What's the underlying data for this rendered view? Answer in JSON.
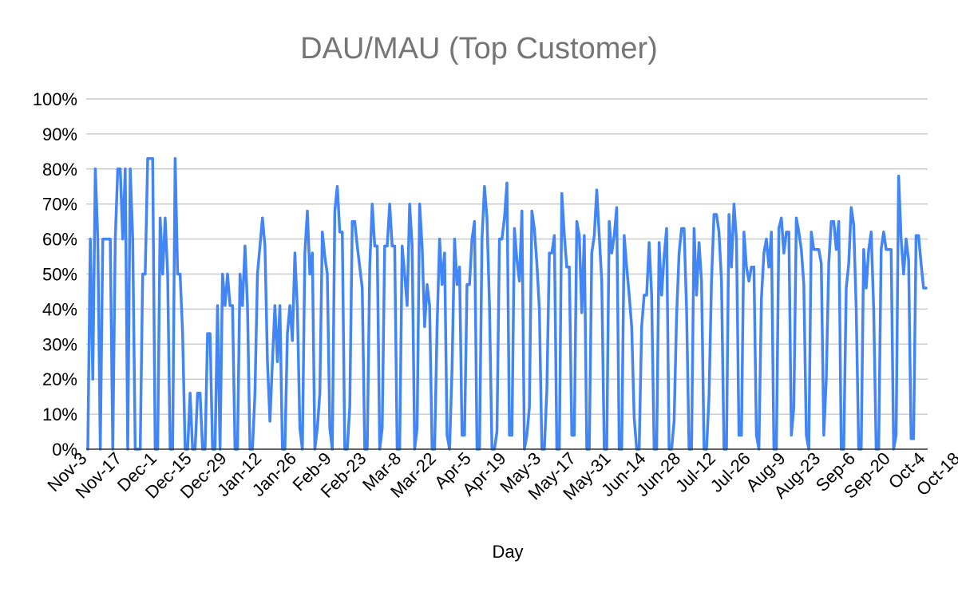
{
  "colors": {
    "series": "#4285f4",
    "grid": "#cccccc",
    "title": "#757575"
  },
  "chart_data": {
    "type": "line",
    "title": "DAU/MAU (Top Customer)",
    "xlabel": "Day",
    "ylabel": "",
    "ylim": [
      0,
      100
    ],
    "y_ticks": [
      "0%",
      "10%",
      "20%",
      "30%",
      "40%",
      "50%",
      "60%",
      "70%",
      "80%",
      "90%",
      "100%"
    ],
    "x_tick_labels": [
      "Nov-3",
      "Nov-17",
      "Dec-1",
      "Dec-15",
      "Dec-29",
      "Jan-12",
      "Jan-26",
      "Feb-9",
      "Feb-23",
      "Mar-8",
      "Mar-22",
      "Apr-5",
      "Apr-19",
      "May-3",
      "May-17",
      "May-31",
      "Jun-14",
      "Jun-28",
      "Jul-12",
      "Jul-26",
      "Aug-9",
      "Aug-23",
      "Sep-6",
      "Sep-20",
      "Oct-4",
      "Oct-18"
    ],
    "grid": true,
    "legend": "none",
    "series": [
      {
        "values": [
          0,
          60,
          20,
          80,
          60,
          0,
          60,
          60,
          60,
          60,
          0,
          60,
          80,
          80,
          60,
          80,
          0,
          80,
          60,
          0,
          0,
          0,
          50,
          50,
          83,
          83,
          83,
          0,
          0,
          66,
          50,
          66,
          50,
          0,
          0,
          83,
          50,
          50,
          33,
          0,
          0,
          16,
          0,
          0,
          16,
          16,
          0,
          0,
          33,
          33,
          0,
          0,
          41,
          0,
          50,
          41,
          50,
          41,
          41,
          0,
          0,
          50,
          41,
          58,
          41,
          0,
          0,
          16,
          50,
          58,
          66,
          58,
          25,
          8,
          25,
          41,
          25,
          41,
          0,
          0,
          33,
          41,
          31,
          56,
          40,
          6,
          0,
          56,
          68,
          50,
          56,
          0,
          6,
          16,
          62,
          55,
          50,
          6,
          0,
          68,
          75,
          62,
          62,
          0,
          0,
          12,
          65,
          65,
          58,
          52,
          46,
          0,
          0,
          52,
          70,
          58,
          58,
          0,
          6,
          58,
          58,
          70,
          58,
          58,
          0,
          0,
          58,
          50,
          41,
          70,
          58,
          0,
          6,
          70,
          58,
          35,
          47,
          41,
          0,
          0,
          35,
          60,
          47,
          56,
          4,
          0,
          23,
          60,
          47,
          52,
          4,
          4,
          47,
          47,
          60,
          65,
          0,
          0,
          60,
          75,
          66,
          41,
          0,
          0,
          5,
          60,
          60,
          66,
          76,
          4,
          4,
          63,
          54,
          48,
          68,
          0,
          4,
          12,
          68,
          63,
          53,
          40,
          0,
          0,
          17,
          56,
          56,
          61,
          0,
          0,
          73,
          61,
          52,
          52,
          4,
          4,
          65,
          61,
          39,
          61,
          0,
          0,
          56,
          61,
          74,
          61,
          48,
          0,
          0,
          65,
          56,
          61,
          69,
          0,
          0,
          61,
          52,
          44,
          35,
          9,
          0,
          0,
          35,
          44,
          44,
          59,
          44,
          0,
          0,
          59,
          44,
          55,
          63,
          0,
          0,
          8,
          38,
          56,
          63,
          63,
          40,
          0,
          0,
          63,
          44,
          59,
          48,
          0,
          0,
          15,
          48,
          67,
          67,
          62,
          48,
          0,
          0,
          67,
          52,
          70,
          60,
          4,
          4,
          62,
          52,
          48,
          52,
          52,
          4,
          0,
          43,
          56,
          60,
          52,
          62,
          0,
          0,
          63,
          66,
          56,
          62,
          62,
          4,
          12,
          66,
          62,
          57,
          47,
          4,
          0,
          62,
          57,
          57,
          57,
          53,
          4,
          20,
          53,
          65,
          65,
          57,
          65,
          0,
          0,
          46,
          53,
          69,
          64,
          40,
          0,
          0,
          57,
          46,
          57,
          62,
          40,
          0,
          0,
          57,
          62,
          57,
          57,
          57,
          0,
          4,
          78,
          60,
          50,
          60,
          54,
          3,
          3,
          61,
          61,
          53,
          46,
          46
        ]
      }
    ]
  }
}
